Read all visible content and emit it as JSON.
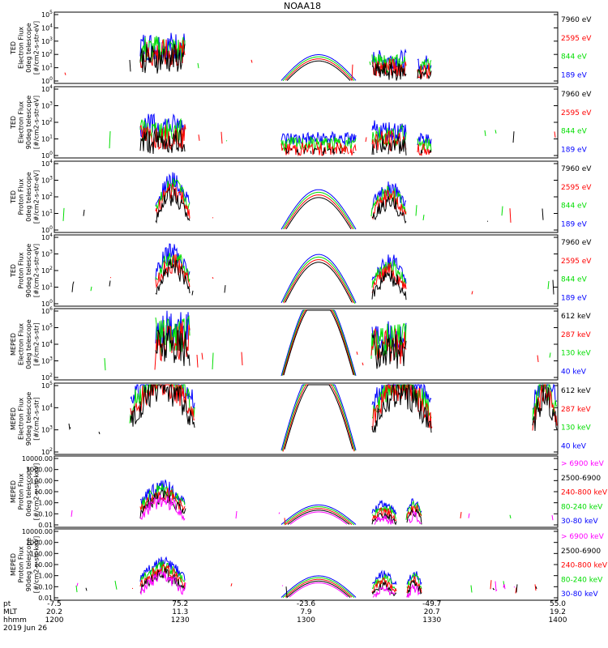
{
  "title": "NOAA18",
  "colors": {
    "blue": "#0000ff",
    "green": "#00dd00",
    "red": "#ff0000",
    "black": "#000000",
    "magenta": "#ff00ff"
  },
  "chart_data": [
    {
      "type": "line",
      "instrument": "TED",
      "ylabel": [
        "TED",
        "Electron Flux",
        "0deg telescope",
        "[#/cm2-s-str-eV]"
      ],
      "log": true,
      "ticks": [
        "10^0",
        "10^1",
        "10^2",
        "10^3",
        "10^4",
        "10^5"
      ],
      "legend": [
        {
          "name": "7960 eV",
          "color": "black"
        },
        {
          "name": "2595 eV",
          "color": "red"
        },
        {
          "name": "844 eV",
          "color": "green"
        },
        {
          "name": "189 eV",
          "color": "blue"
        }
      ],
      "bursts": [
        [
          0.17,
          0.26,
          4.2,
          "spiky"
        ],
        [
          0.45,
          0.6,
          2.2,
          "arch"
        ],
        [
          0.63,
          0.7,
          2.6,
          "spiky"
        ],
        [
          0.72,
          0.75,
          2.2,
          "spiky"
        ]
      ]
    },
    {
      "type": "line",
      "instrument": "TED",
      "ylabel": [
        "TED",
        "Electron Flux",
        "90deg telescope",
        "[#/cm2-s-str-eV]"
      ],
      "log": true,
      "ticks": [
        "10^0",
        "10^1",
        "10^2",
        "10^3",
        "10^4"
      ],
      "legend": [
        {
          "name": "7960 eV",
          "color": "black"
        },
        {
          "name": "2595 eV",
          "color": "red"
        },
        {
          "name": "844 eV",
          "color": "green"
        },
        {
          "name": "189 eV",
          "color": "blue"
        }
      ],
      "bursts": [
        [
          0.17,
          0.26,
          2.8,
          "spiky"
        ],
        [
          0.45,
          0.6,
          1.6,
          "spiky"
        ],
        [
          0.63,
          0.7,
          2.4,
          "spiky"
        ],
        [
          0.72,
          0.75,
          1.5,
          "spiky"
        ]
      ]
    },
    {
      "type": "line",
      "instrument": "TED",
      "ylabel": [
        "TED",
        "Proton Flux",
        "0deg telescope",
        "[#/cm2-s-str-eV]"
      ],
      "log": true,
      "ticks": [
        "10^0",
        "10^1",
        "10^2",
        "10^3",
        "10^4"
      ],
      "legend": [
        {
          "name": "7960 eV",
          "color": "black"
        },
        {
          "name": "2595 eV",
          "color": "red"
        },
        {
          "name": "844 eV",
          "color": "green"
        },
        {
          "name": "189 eV",
          "color": "blue"
        }
      ],
      "bursts": [
        [
          0.2,
          0.27,
          3.4,
          "hump"
        ],
        [
          0.45,
          0.6,
          2.7,
          "arch"
        ],
        [
          0.63,
          0.7,
          3.0,
          "hump"
        ]
      ]
    },
    {
      "type": "line",
      "instrument": "TED",
      "ylabel": [
        "TED",
        "Proton Flux",
        "90deg telescope",
        "[#/cm2-s-str-eV]"
      ],
      "log": true,
      "ticks": [
        "10^0",
        "10^1",
        "10^2",
        "10^3",
        "10^4"
      ],
      "legend": [
        {
          "name": "7960 eV",
          "color": "black"
        },
        {
          "name": "2595 eV",
          "color": "red"
        },
        {
          "name": "844 eV",
          "color": "green"
        },
        {
          "name": "189 eV",
          "color": "blue"
        }
      ],
      "bursts": [
        [
          0.2,
          0.27,
          3.6,
          "hump"
        ],
        [
          0.45,
          0.6,
          3.3,
          "arch"
        ],
        [
          0.63,
          0.7,
          3.0,
          "hump"
        ]
      ]
    },
    {
      "type": "line",
      "instrument": "MEPED",
      "ylabel": [
        "MEPED",
        "Electron Flux",
        "0deg telescope",
        "[#/cm2-s-str]"
      ],
      "log": true,
      "ticks": [
        "10^2",
        "10^3",
        "10^4",
        "10^5",
        "10^6"
      ],
      "legend": [
        {
          "name": "612 keV",
          "color": "black"
        },
        {
          "name": "287 keV",
          "color": "red"
        },
        {
          "name": "130 keV",
          "color": "green"
        },
        {
          "name": "40 keV",
          "color": "blue"
        }
      ],
      "bursts": [
        [
          0.2,
          0.27,
          4.5,
          "spiky"
        ],
        [
          0.45,
          0.6,
          5.7,
          "arch"
        ],
        [
          0.63,
          0.7,
          4.0,
          "spiky"
        ]
      ]
    },
    {
      "type": "line",
      "instrument": "MEPED",
      "ylabel": [
        "MEPED",
        "Electron Flux",
        "90deg telescope",
        "[#/cm2-s-str]"
      ],
      "log": true,
      "ticks": [
        "10^2",
        "10^3",
        "10^4",
        "10^5"
      ],
      "legend": [
        {
          "name": "612 keV",
          "color": "black"
        },
        {
          "name": "287 keV",
          "color": "red"
        },
        {
          "name": "130 keV",
          "color": "green"
        },
        {
          "name": "40 keV",
          "color": "blue"
        }
      ],
      "bursts": [
        [
          0.15,
          0.28,
          4.6,
          "hump"
        ],
        [
          0.45,
          0.6,
          4.3,
          "arch"
        ],
        [
          0.63,
          0.75,
          4.2,
          "hump"
        ],
        [
          0.95,
          1.0,
          4.0,
          "hump"
        ]
      ]
    },
    {
      "type": "line",
      "instrument": "MEPED",
      "ylabel": [
        "MEPED",
        "Proton Flux",
        "0deg telescope",
        "[#/cm2-s-str-keV]"
      ],
      "log": false,
      "ticks": [
        "0.01",
        "0.10",
        "1.00",
        "10.00",
        "100.00",
        "1000.00",
        "10000.00"
      ],
      "legend": [
        {
          "name": "> 6900 keV",
          "color": "magenta"
        },
        {
          "name": "2500-6900",
          "color": "black"
        },
        {
          "name": "240-800 keV",
          "color": "red"
        },
        {
          "name": "80-240 keV",
          "color": "green"
        },
        {
          "name": "30-80 keV",
          "color": "blue"
        }
      ],
      "bursts": [
        [
          0.17,
          0.26,
          4.0,
          "hump"
        ],
        [
          0.45,
          0.6,
          2.0,
          "arch"
        ],
        [
          0.63,
          0.68,
          2.2,
          "hump"
        ],
        [
          0.7,
          0.73,
          2.5,
          "hump"
        ]
      ]
    },
    {
      "type": "line",
      "instrument": "MEPED",
      "ylabel": [
        "MEPED",
        "Proton Flux",
        "90deg telescope",
        "[#/cm2-s-str-keV]"
      ],
      "log": false,
      "ticks": [
        "0.01",
        "0.10",
        "1.00",
        "10.00",
        "100.00",
        "1000.00",
        "10000.00"
      ],
      "legend": [
        {
          "name": "> 6900 keV",
          "color": "magenta"
        },
        {
          "name": "2500-6900",
          "color": "black"
        },
        {
          "name": "240-800 keV",
          "color": "red"
        },
        {
          "name": "80-240 keV",
          "color": "green"
        },
        {
          "name": "30-80 keV",
          "color": "blue"
        }
      ],
      "bursts": [
        [
          0.17,
          0.26,
          3.6,
          "hump"
        ],
        [
          0.45,
          0.6,
          2.2,
          "arch"
        ],
        [
          0.63,
          0.68,
          2.4,
          "hump"
        ],
        [
          0.7,
          0.73,
          2.5,
          "hump"
        ]
      ]
    }
  ],
  "x_axis": {
    "row_labels": [
      "pt",
      "MLT",
      "hhmm",
      "2019 Jun 26"
    ],
    "ticks": [
      {
        "lat": "-7.5",
        "mlt": "20.2",
        "hhmm": "1200"
      },
      {
        "lat": "75.2",
        "mlt": "11.3",
        "hhmm": "1230"
      },
      {
        "lat": "-23.6",
        "mlt": "7.9",
        "hhmm": "1300"
      },
      {
        "lat": "-49.7",
        "mlt": "20.7",
        "hhmm": "1330"
      },
      {
        "lat": "55.0",
        "mlt": "19.2",
        "hhmm": "1400"
      }
    ]
  }
}
